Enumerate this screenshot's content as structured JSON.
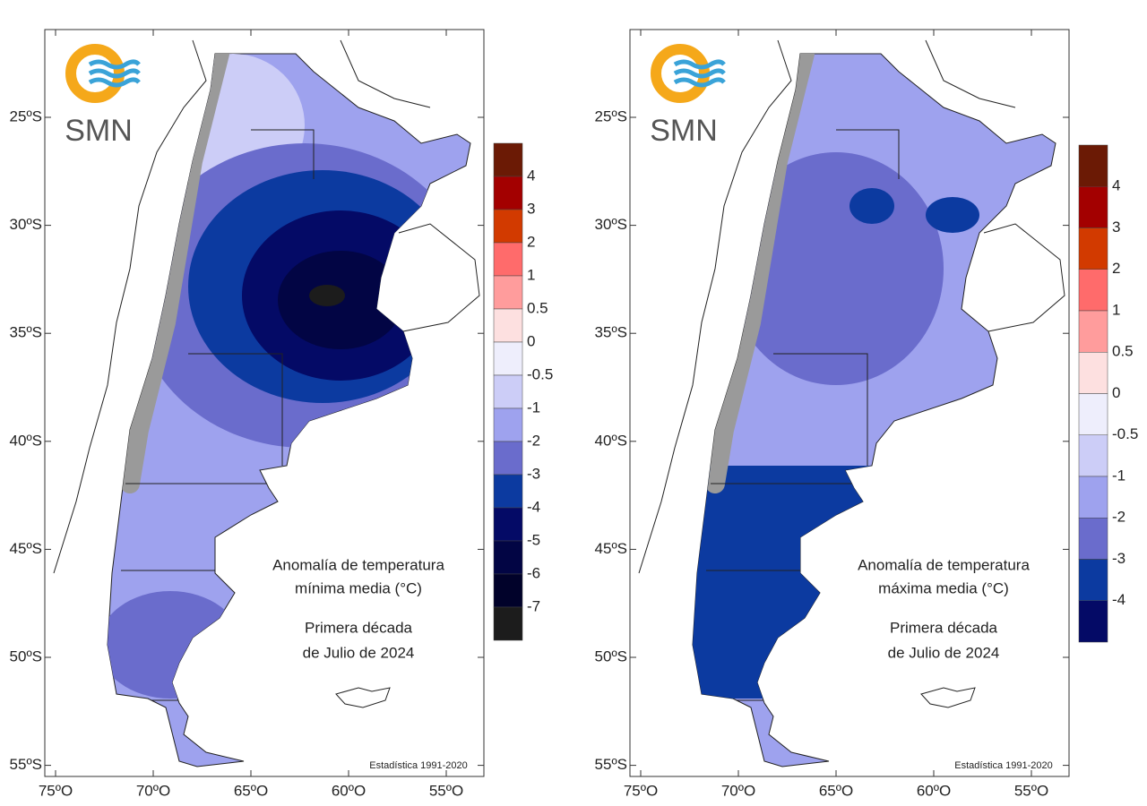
{
  "maps": [
    {
      "logo": "SMN",
      "title_lines": [
        "Anomalía de temperatura",
        "mínima media (°C)"
      ],
      "period_lines": [
        "Primera década",
        "de Julio de 2024"
      ],
      "source": "Estadística 1991-2020",
      "lat_labels": [
        "25ºS",
        "30ºS",
        "35ºS",
        "40ºS",
        "45ºS",
        "50ºS",
        "55ºS"
      ],
      "lon_labels": [
        "75ºO",
        "70ºO",
        "65ºO",
        "60ºO",
        "55ºO"
      ],
      "legend": {
        "labels": [
          "4",
          "3",
          "2",
          "1",
          "0.5",
          "0",
          "-0.5",
          "-1",
          "-2",
          "-3",
          "-4",
          "-5",
          "-6",
          "-7"
        ],
        "colors": [
          "#6b1a05",
          "#a30000",
          "#d23a00",
          "#ff6b6b",
          "#ff9c9c",
          "#fde0e0",
          "#eeeefc",
          "#cccdf7",
          "#9ea2ee",
          "#6a6ccc",
          "#0c3aa0",
          "#040a66",
          "#020544",
          "#01022a",
          "#1c1c1c"
        ]
      }
    },
    {
      "logo": "SMN",
      "title_lines": [
        "Anomalía de temperatura",
        "máxima media (°C)"
      ],
      "period_lines": [
        "Primera década",
        "de Julio de 2024"
      ],
      "source": "Estadística 1991-2020",
      "lat_labels": [
        "25ºS",
        "30ºS",
        "35ºS",
        "40ºS",
        "45ºS",
        "50ºS",
        "55ºS"
      ],
      "lon_labels": [
        "75ºO",
        "70ºO",
        "65ºO",
        "60ºO",
        "55ºO"
      ],
      "legend": {
        "labels": [
          "4",
          "3",
          "2",
          "1",
          "0.5",
          "0",
          "-0.5",
          "-1",
          "-2",
          "-3",
          "-4"
        ],
        "colors": [
          "#6b1a05",
          "#a30000",
          "#d23a00",
          "#ff6b6b",
          "#ff9c9c",
          "#fde0e0",
          "#eeeefc",
          "#cccdf7",
          "#9ea2ee",
          "#6a6ccc",
          "#0c3aa0",
          "#040a66"
        ]
      }
    }
  ]
}
